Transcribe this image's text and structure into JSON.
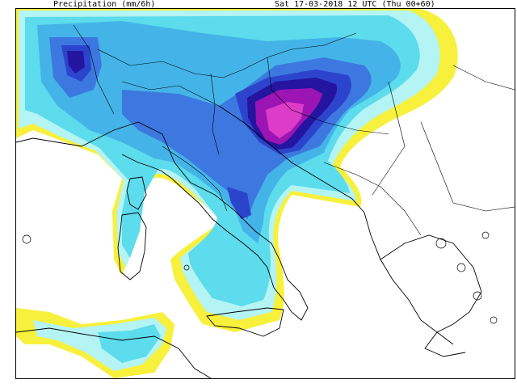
{
  "header": {
    "title": "Precipitation (mm/6h)",
    "valid_time": "Sat 17-03-2018 12 UTC (Thu 00+60)"
  },
  "map": {
    "region": "Central Mediterranean / Italy / Balkans",
    "levels": [
      {
        "name": "level-1",
        "color": "#f7f03c"
      },
      {
        "name": "level-2",
        "color": "#b4f4f4"
      },
      {
        "name": "level-3",
        "color": "#5cdcec"
      },
      {
        "name": "level-4",
        "color": "#44b4e8"
      },
      {
        "name": "level-5",
        "color": "#3c78e0"
      },
      {
        "name": "level-6",
        "color": "#2c44cc"
      },
      {
        "name": "level-7",
        "color": "#2414a0"
      },
      {
        "name": "level-8",
        "color": "#9c14b4"
      },
      {
        "name": "level-9",
        "color": "#dc3cc8"
      }
    ]
  }
}
